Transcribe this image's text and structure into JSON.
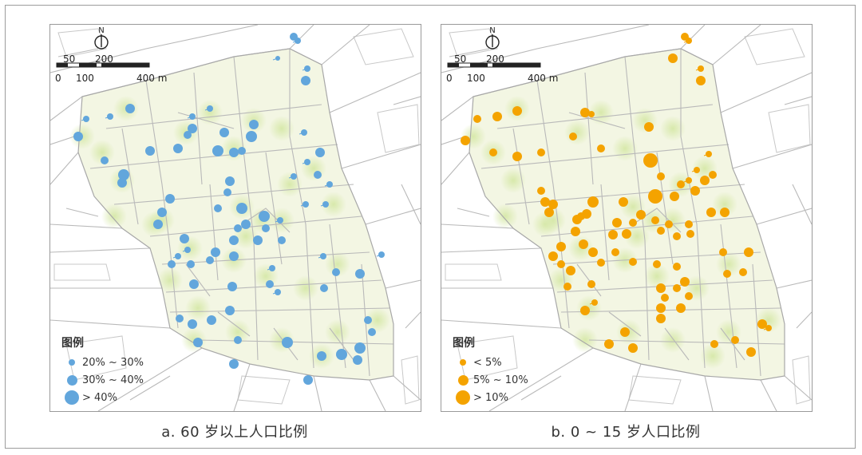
{
  "colors": {
    "blue": "#62a6dc",
    "orange": "#f4a300",
    "halo": "#d6e8a8",
    "area": "#f3f6e3",
    "road": "#b9b9b9",
    "block": "#c8c8c8"
  },
  "north_label": "N",
  "scale": {
    "top": [
      "50",
      "200"
    ],
    "bottom": [
      "0",
      "100",
      "400 m"
    ]
  },
  "panels": [
    {
      "caption": "a. 60 岁以上人口比例",
      "legend": {
        "title": "图例",
        "items": [
          {
            "label": "20% ~ 30%",
            "size": "small"
          },
          {
            "label": "30% ~ 40%",
            "size": "medium"
          },
          {
            "label": "> 40%",
            "size": "large"
          }
        ]
      }
    },
    {
      "caption": "b. 0 ~ 15 岁人口比例",
      "legend": {
        "title": "图例",
        "items": [
          {
            "label": "< 5%",
            "size": "small"
          },
          {
            "label": "5% ~ 10%",
            "size": "medium"
          },
          {
            "label": "> 10%",
            "size": "large"
          }
        ]
      }
    }
  ]
}
